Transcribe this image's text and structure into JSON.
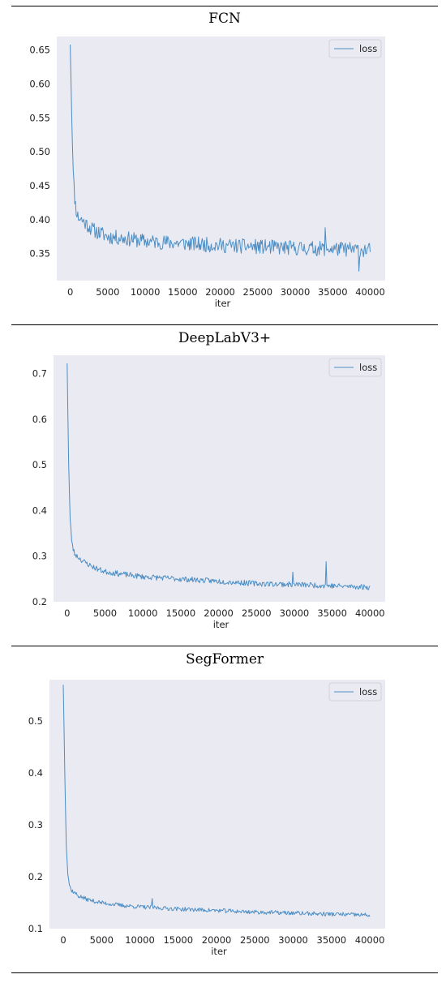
{
  "chart_data": [
    {
      "type": "line",
      "title": "FCN",
      "xlabel": "iter",
      "ylabel": "",
      "legend": [
        "loss"
      ],
      "legend_position": "top-right",
      "grid": false,
      "xlim": [
        -1800,
        42000
      ],
      "ylim": [
        0.31,
        0.67
      ],
      "xticks": [
        0,
        5000,
        10000,
        15000,
        20000,
        25000,
        30000,
        35000,
        40000
      ],
      "yticks": [
        0.35,
        0.4,
        0.45,
        0.5,
        0.55,
        0.6,
        0.65
      ],
      "ytick_decimals": 2,
      "series": [
        {
          "name": "loss",
          "color": "#4c8ec4",
          "x": [
            0,
            200,
            400,
            600,
            800,
            1000,
            2000,
            3000,
            4000,
            5000,
            7500,
            10000,
            15000,
            20000,
            25000,
            30000,
            35000,
            40000
          ],
          "y": [
            0.658,
            0.55,
            0.47,
            0.43,
            0.415,
            0.405,
            0.395,
            0.385,
            0.38,
            0.375,
            0.372,
            0.368,
            0.365,
            0.362,
            0.36,
            0.358,
            0.357,
            0.355
          ],
          "noise": 0.011,
          "seed": 11,
          "spikes": [
            [
              34000,
              0.388
            ],
            [
              38500,
              0.324
            ]
          ]
        }
      ]
    },
    {
      "type": "line",
      "title": "DeepLabV3+",
      "xlabel": "iter",
      "ylabel": "",
      "legend": [
        "loss"
      ],
      "legend_position": "top-right",
      "grid": false,
      "xlim": [
        -1800,
        42000
      ],
      "ylim": [
        0.2,
        0.74
      ],
      "xticks": [
        0,
        5000,
        10000,
        15000,
        20000,
        25000,
        30000,
        35000,
        40000
      ],
      "yticks": [
        0.2,
        0.3,
        0.4,
        0.5,
        0.6,
        0.7
      ],
      "ytick_decimals": 1,
      "series": [
        {
          "name": "loss",
          "color": "#4c8ec4",
          "x": [
            0,
            200,
            400,
            600,
            800,
            1000,
            2000,
            3000,
            4000,
            5000,
            7500,
            10000,
            15000,
            20000,
            25000,
            30000,
            35000,
            40000
          ],
          "y": [
            0.722,
            0.5,
            0.38,
            0.335,
            0.315,
            0.305,
            0.29,
            0.28,
            0.272,
            0.266,
            0.26,
            0.255,
            0.25,
            0.245,
            0.24,
            0.238,
            0.235,
            0.232
          ],
          "noise": 0.006,
          "seed": 23,
          "spikes": [
            [
              29800,
              0.265
            ],
            [
              34200,
              0.288
            ]
          ]
        }
      ]
    },
    {
      "type": "line",
      "title": "SegFormer",
      "xlabel": "iter",
      "ylabel": "",
      "legend": [
        "loss"
      ],
      "legend_position": "top-right",
      "grid": false,
      "xlim": [
        -1800,
        42000
      ],
      "ylim": [
        0.1,
        0.58
      ],
      "xticks": [
        0,
        5000,
        10000,
        15000,
        20000,
        25000,
        30000,
        35000,
        40000
      ],
      "yticks": [
        0.1,
        0.2,
        0.3,
        0.4,
        0.5
      ],
      "ytick_decimals": 1,
      "series": [
        {
          "name": "loss",
          "color": "#4c8ec4",
          "x": [
            0,
            200,
            400,
            600,
            800,
            1000,
            2000,
            3000,
            4000,
            5000,
            7500,
            10000,
            15000,
            20000,
            25000,
            30000,
            35000,
            40000
          ],
          "y": [
            0.57,
            0.4,
            0.26,
            0.205,
            0.185,
            0.175,
            0.163,
            0.157,
            0.153,
            0.15,
            0.145,
            0.142,
            0.138,
            0.135,
            0.132,
            0.13,
            0.128,
            0.126
          ],
          "noise": 0.004,
          "seed": 37,
          "spikes": [
            [
              11600,
              0.158
            ]
          ]
        }
      ]
    }
  ]
}
